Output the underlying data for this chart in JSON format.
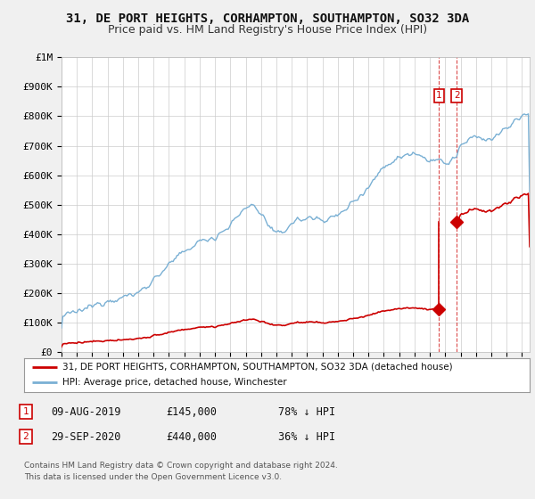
{
  "title": "31, DE PORT HEIGHTS, CORHAMPTON, SOUTHAMPTON, SO32 3DA",
  "subtitle": "Price paid vs. HM Land Registry's House Price Index (HPI)",
  "legend_label_red": "31, DE PORT HEIGHTS, CORHAMPTON, SOUTHAMPTON, SO32 3DA (detached house)",
  "legend_label_blue": "HPI: Average price, detached house, Winchester",
  "table_rows": [
    {
      "num": "1",
      "date": "09-AUG-2019",
      "price": "£145,000",
      "hpi": "78% ↓ HPI"
    },
    {
      "num": "2",
      "date": "29-SEP-2020",
      "price": "£440,000",
      "hpi": "36% ↓ HPI"
    }
  ],
  "footnote": "Contains HM Land Registry data © Crown copyright and database right 2024.\nThis data is licensed under the Open Government Licence v3.0.",
  "sale1_year": 2019.6,
  "sale1_price": 145000,
  "sale2_year": 2020.75,
  "sale2_price": 440000,
  "ylim": [
    0,
    1000000
  ],
  "xlim_start": 1995.0,
  "xlim_end": 2025.5,
  "background_color": "#f0f0f0",
  "plot_bg_color": "#ffffff",
  "red_color": "#cc0000",
  "blue_color": "#7ab0d4",
  "grid_color": "#cccccc",
  "title_fontsize": 10,
  "subtitle_fontsize": 9,
  "tick_fontsize": 7,
  "ylabel_fontsize": 8
}
